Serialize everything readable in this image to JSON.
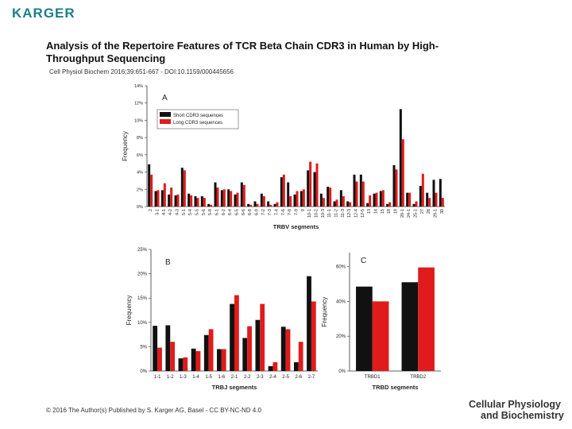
{
  "header": {
    "logo": "KARGER",
    "title_lines": [
      "Analysis of the Repertoire Features of TCR Beta Chain CDR3 in Human by High-",
      "Throughput Sequencing"
    ],
    "citation": "Cell Physiol Biochem 2016;39:651-667 - DOI:10.1159/000445656"
  },
  "footer": {
    "copyright": "© 2016 The Author(s) Published by S. Karger AG, Basel - CC BY-NC-ND 4.0",
    "journal_lines": [
      "Cellular Physiology",
      "and Biochemistry"
    ]
  },
  "chart_data": [
    {
      "type": "bar",
      "panel_label": "A",
      "x_label": "TRBV segments",
      "y_label": "Frequency",
      "categories": [
        "2",
        "3-1",
        "4-1",
        "4-2",
        "4-3",
        "5-1",
        "5-4",
        "5-5",
        "5-6",
        "5-8",
        "6-1",
        "6-2",
        "6-4",
        "6-5",
        "6-6",
        "6-8",
        "6-9",
        "7-2",
        "7-3",
        "7-4",
        "7-6",
        "7-8",
        "7-9",
        "9",
        "10-1",
        "10-2",
        "10-3",
        "11-1",
        "11-2",
        "11-3",
        "12-3",
        "12-4",
        "12-5",
        "13",
        "14",
        "15",
        "18",
        "19",
        "20-1",
        "24-1",
        "25-1",
        "27",
        "28",
        "29-1",
        "30"
      ],
      "series": [
        {
          "name": "Short CDR3 sequences",
          "color": "#111111",
          "values": [
            4.9,
            1.8,
            1.9,
            1.4,
            1.3,
            4.5,
            1.5,
            1.2,
            1.2,
            0.3,
            2.8,
            1.9,
            2.0,
            1.4,
            2.8,
            0.3,
            0.6,
            1.5,
            0.6,
            0.3,
            3.4,
            2.8,
            1.4,
            1.8,
            4.2,
            4.0,
            1.5,
            2.3,
            0.6,
            1.9,
            0.6,
            3.7,
            3.7,
            0.4,
            1.5,
            1.8,
            0.3,
            4.8,
            11.3,
            1.6,
            0.3,
            2.4,
            1.6,
            3.1,
            3.2
          ]
        },
        {
          "name": "Long CDR3 sequences",
          "color": "#e01b1b",
          "values": [
            3.7,
            1.9,
            2.7,
            2.2,
            1.4,
            4.2,
            1.3,
            1.0,
            1.0,
            0.2,
            2.2,
            2.0,
            1.8,
            1.6,
            2.5,
            0.2,
            0.3,
            1.2,
            0.2,
            0.5,
            3.7,
            1.2,
            1.8,
            2.0,
            5.2,
            5.0,
            1.0,
            2.2,
            0.8,
            1.2,
            0.5,
            2.9,
            2.9,
            1.3,
            1.6,
            1.9,
            0.5,
            4.3,
            7.8,
            1.6,
            0.6,
            3.8,
            1.0,
            1.6,
            1.0
          ]
        }
      ],
      "ylim": [
        0,
        14
      ],
      "yticks": [
        {
          "value": 0,
          "label": "0%"
        },
        {
          "value": 2,
          "label": "2%"
        },
        {
          "value": 4,
          "label": "4%"
        },
        {
          "value": 6,
          "label": "6%"
        },
        {
          "value": 8,
          "label": "8%"
        },
        {
          "value": 10,
          "label": "10%"
        },
        {
          "value": 12,
          "label": "12%"
        },
        {
          "value": 14,
          "label": "14%"
        }
      ],
      "legend": "upper left"
    },
    {
      "type": "bar",
      "panel_label": "B",
      "x_label": "TRBJ segments",
      "y_label": "Frequency",
      "categories": [
        "1-1",
        "1-2",
        "1-3",
        "1-4",
        "1-5",
        "1-6",
        "2-1",
        "2-2",
        "2-3",
        "2-4",
        "2-5",
        "2-6",
        "2-7"
      ],
      "series": [
        {
          "color": "#111111",
          "values": [
            9.3,
            9.4,
            2.6,
            4.6,
            7.4,
            4.5,
            13.8,
            6.8,
            10.5,
            1.0,
            9.1,
            1.8,
            19.5
          ]
        },
        {
          "color": "#e01b1b",
          "values": [
            4.8,
            6.0,
            2.8,
            4.1,
            8.6,
            4.5,
            15.6,
            9.2,
            13.8,
            1.8,
            8.6,
            6.0,
            14.3
          ]
        }
      ],
      "ylim": [
        0,
        25
      ],
      "yticks": [
        {
          "value": 0,
          "label": "0%"
        },
        {
          "value": 5,
          "label": "5%"
        },
        {
          "value": 10,
          "label": "10%"
        },
        {
          "value": 15,
          "label": "15%"
        },
        {
          "value": 20,
          "label": "20%"
        },
        {
          "value": 25,
          "label": "25%"
        }
      ]
    },
    {
      "type": "bar",
      "panel_label": "C",
      "x_label": "TRBD segments",
      "y_label": "Frequency",
      "categories": [
        "TRBD1",
        "TRBD2"
      ],
      "series": [
        {
          "color": "#111111",
          "values": [
            48.5,
            51
          ]
        },
        {
          "color": "#e01b1b",
          "values": [
            40,
            59.5
          ]
        }
      ],
      "ylim": [
        0,
        68
      ],
      "yticks": [
        {
          "value": 0,
          "label": "0%"
        },
        {
          "value": 20,
          "label": "20%"
        },
        {
          "value": 40,
          "label": "40%"
        },
        {
          "value": 60,
          "label": "60%"
        }
      ]
    }
  ]
}
